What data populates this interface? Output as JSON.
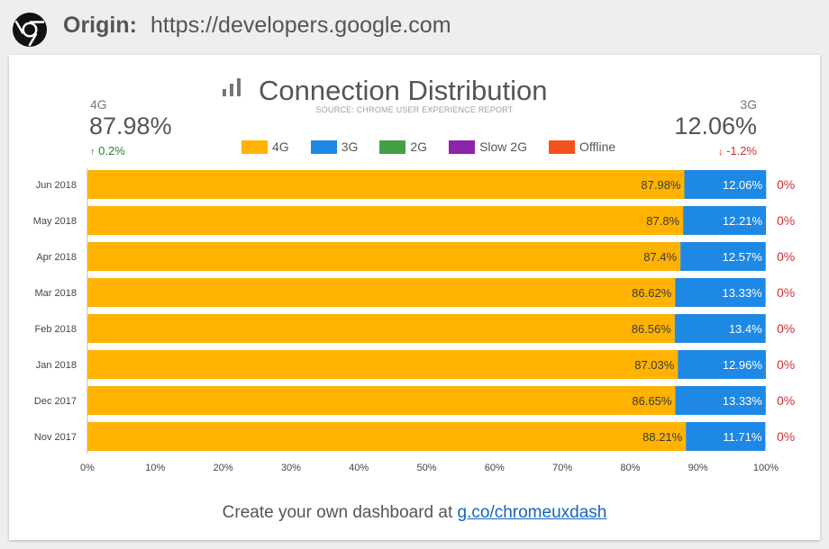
{
  "header": {
    "origin_label": "Origin:",
    "origin_url": "https://developers.google.com",
    "logo_icon": "chrome-logo-icon"
  },
  "card": {
    "title": "Connection Distribution",
    "title_icon": "bar-chart-icon",
    "source": "SOURCE: CHROME USER EXPERIENCE REPORT",
    "left_stat": {
      "label": "4G",
      "value": "87.98%",
      "delta": "0.2%",
      "arrow": "↑"
    },
    "right_stat": {
      "label": "3G",
      "value": "12.06%",
      "delta": "-1.2%",
      "arrow": "↓"
    },
    "footer_text": "Create your own dashboard at ",
    "footer_link": "g.co/chromeuxdash"
  },
  "colors": {
    "4G": "#ffb300",
    "3G": "#1e88e5",
    "2G": "#43a047",
    "Slow 2G": "#8e24aa",
    "Offline": "#f4511e",
    "other_label": "#d32f2f"
  },
  "chart_data": {
    "type": "bar",
    "orientation": "horizontal",
    "stacked": true,
    "categories": [
      "Jun 2018",
      "May 2018",
      "Apr 2018",
      "Mar 2018",
      "Feb 2018",
      "Jan 2018",
      "Dec 2017",
      "Nov 2017"
    ],
    "series": [
      {
        "name": "4G",
        "values": [
          87.98,
          87.8,
          87.4,
          86.62,
          86.56,
          87.03,
          86.65,
          88.21
        ]
      },
      {
        "name": "3G",
        "values": [
          12.06,
          12.21,
          12.57,
          13.33,
          13.4,
          12.96,
          13.33,
          11.71
        ]
      },
      {
        "name": "2G",
        "values": [
          0,
          0,
          0,
          0,
          0,
          0,
          0,
          0
        ]
      },
      {
        "name": "Slow 2G",
        "values": [
          0,
          0,
          0,
          0,
          0,
          0,
          0,
          0
        ]
      },
      {
        "name": "Offline",
        "values": [
          0,
          0,
          0,
          0,
          0,
          0,
          0,
          0
        ]
      }
    ],
    "bar_labels_4G": [
      "87.98%",
      "87.8%",
      "87.4%",
      "86.62%",
      "86.56%",
      "87.03%",
      "86.65%",
      "88.21%"
    ],
    "bar_labels_3G": [
      "12.06%",
      "12.21%",
      "12.57%",
      "13.33%",
      "13.4%",
      "12.96%",
      "13.33%",
      "11.71%"
    ],
    "other_labels": [
      "0%",
      "0%",
      "0%",
      "0%",
      "0%",
      "0%",
      "0%",
      "0%"
    ],
    "xlim": [
      0,
      100
    ],
    "xticks": [
      "0%",
      "10%",
      "20%",
      "30%",
      "40%",
      "50%",
      "60%",
      "70%",
      "80%",
      "90%",
      "100%"
    ],
    "xlabel": "",
    "ylabel": "",
    "legend": [
      "4G",
      "3G",
      "2G",
      "Slow 2G",
      "Offline"
    ],
    "legend_position": "top-center",
    "grid": false
  }
}
